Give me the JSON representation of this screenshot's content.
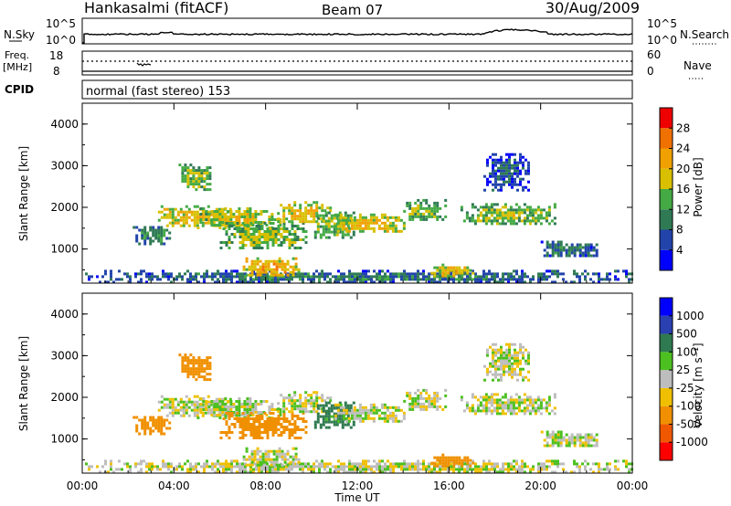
{
  "header": {
    "station": "Hankasalmi (fitACF)",
    "beam": "Beam 07",
    "date": "30/Aug/2009"
  },
  "nsky_panel": {
    "left_label": "N.Sky",
    "left_ticks": [
      "10^5",
      "10^0"
    ],
    "right_ticks": [
      "10^5",
      "10^0"
    ],
    "right_label": "N.Search"
  },
  "freq_panel": {
    "left_label_1": "Freq.",
    "left_label_2": "[MHz]",
    "left_ticks": [
      "18",
      "8"
    ],
    "right_ticks": [
      "60",
      "0"
    ],
    "right_label": "Nave",
    "cpid_label": "CPID",
    "mode_text": "normal (fast stereo) 153"
  },
  "x_axis": {
    "ticks": [
      "00:00",
      "04:00",
      "08:00",
      "12:00",
      "16:00",
      "20:00",
      "00:00"
    ],
    "label": "Time UT"
  },
  "colors": {
    "power": [
      "#0000ff",
      "#2244aa",
      "#2f7a55",
      "#44aa44",
      "#d8c000",
      "#f0a000",
      "#f07000",
      "#ee0000"
    ],
    "velocity": [
      "#ff0000",
      "#f05800",
      "#f09000",
      "#f0c000",
      "#bdbdbd",
      "#4cc020",
      "#2f7a50",
      "#2a40b0",
      "#0000ff"
    ]
  },
  "chart_data": [
    {
      "type": "heatmap",
      "title": "Hankasalmi (fitACF)",
      "xlabel": "Time UT",
      "ylabel": "Slant Range [km]",
      "xlim": [
        0,
        24
      ],
      "ylim": [
        180,
        4500
      ],
      "yticks": [
        "1000",
        "2000",
        "3000",
        "4000"
      ],
      "colorbar_label": "Power [dB]",
      "colorbar_ticks": [
        "4",
        "8",
        "12",
        "16",
        "20",
        "24",
        "28"
      ],
      "colorbar_range": [
        0,
        32
      ],
      "features": [
        {
          "t": [
            0.0,
            24.0
          ],
          "r": [
            200,
            500
          ],
          "value": 10
        },
        {
          "t": [
            2.2,
            3.8
          ],
          "r": [
            1150,
            1550
          ],
          "value": 12
        },
        {
          "t": [
            3.3,
            6.5
          ],
          "r": [
            1550,
            2050
          ],
          "value": 20
        },
        {
          "t": [
            4.2,
            5.6
          ],
          "r": [
            2400,
            3050
          ],
          "value": 16
        },
        {
          "t": [
            5.0,
            8.6
          ],
          "r": [
            1500,
            2000
          ],
          "value": 18
        },
        {
          "t": [
            6.0,
            9.8
          ],
          "r": [
            1050,
            1650
          ],
          "value": 16
        },
        {
          "t": [
            7.0,
            9.5
          ],
          "r": [
            350,
            800
          ],
          "value": 22
        },
        {
          "t": [
            8.5,
            10.8
          ],
          "r": [
            1650,
            2150
          ],
          "value": 20
        },
        {
          "t": [
            10.0,
            11.8
          ],
          "r": [
            1300,
            1900
          ],
          "value": 16
        },
        {
          "t": [
            11.0,
            14.0
          ],
          "r": [
            1400,
            1850
          ],
          "value": 20
        },
        {
          "t": [
            14.0,
            15.8
          ],
          "r": [
            1700,
            2200
          ],
          "value": 16
        },
        {
          "t": [
            15.2,
            17.0
          ],
          "r": [
            350,
            650
          ],
          "value": 20
        },
        {
          "t": [
            16.5,
            20.6
          ],
          "r": [
            1600,
            2100
          ],
          "value": 16
        },
        {
          "t": [
            17.5,
            19.5
          ],
          "r": [
            2400,
            3300
          ],
          "value": 8
        },
        {
          "t": [
            20.0,
            22.5
          ],
          "r": [
            850,
            1200
          ],
          "value": 10
        }
      ]
    },
    {
      "type": "heatmap",
      "title": "",
      "xlabel": "Time UT",
      "ylabel": "Slant Range [km]",
      "xlim": [
        0,
        24
      ],
      "ylim": [
        180,
        4500
      ],
      "yticks": [
        "1000",
        "2000",
        "3000",
        "4000"
      ],
      "colorbar_label": "Velocity [m s⁻¹]",
      "colorbar_ticks": [
        "1000",
        "500",
        "100",
        "25",
        "-25",
        "-100",
        "-500",
        "-1000"
      ],
      "colorbar_range": [
        -1500,
        1500
      ],
      "features": [
        {
          "t": [
            0.0,
            24.0
          ],
          "r": [
            200,
            500
          ],
          "value": 0
        },
        {
          "t": [
            2.2,
            3.8
          ],
          "r": [
            1150,
            1550
          ],
          "value": -300
        },
        {
          "t": [
            3.3,
            6.5
          ],
          "r": [
            1550,
            2050
          ],
          "value": 0
        },
        {
          "t": [
            4.2,
            5.6
          ],
          "r": [
            2400,
            3050
          ],
          "value": -200
        },
        {
          "t": [
            5.0,
            8.6
          ],
          "r": [
            1500,
            2000
          ],
          "value": 0
        },
        {
          "t": [
            6.0,
            9.8
          ],
          "r": [
            1050,
            1650
          ],
          "value": -300
        },
        {
          "t": [
            7.0,
            9.5
          ],
          "r": [
            350,
            800
          ],
          "value": 0
        },
        {
          "t": [
            8.5,
            10.8
          ],
          "r": [
            1650,
            2150
          ],
          "value": 0
        },
        {
          "t": [
            10.0,
            11.8
          ],
          "r": [
            1300,
            1900
          ],
          "value": 150
        },
        {
          "t": [
            11.0,
            14.0
          ],
          "r": [
            1400,
            1850
          ],
          "value": 0
        },
        {
          "t": [
            14.0,
            15.8
          ],
          "r": [
            1700,
            2200
          ],
          "value": 0
        },
        {
          "t": [
            15.2,
            17.0
          ],
          "r": [
            350,
            650
          ],
          "value": -200
        },
        {
          "t": [
            16.5,
            20.6
          ],
          "r": [
            1600,
            2100
          ],
          "value": 0
        },
        {
          "t": [
            17.5,
            19.5
          ],
          "r": [
            2400,
            3300
          ],
          "value": 0
        },
        {
          "t": [
            20.0,
            22.5
          ],
          "r": [
            850,
            1200
          ],
          "value": 0
        }
      ]
    }
  ]
}
